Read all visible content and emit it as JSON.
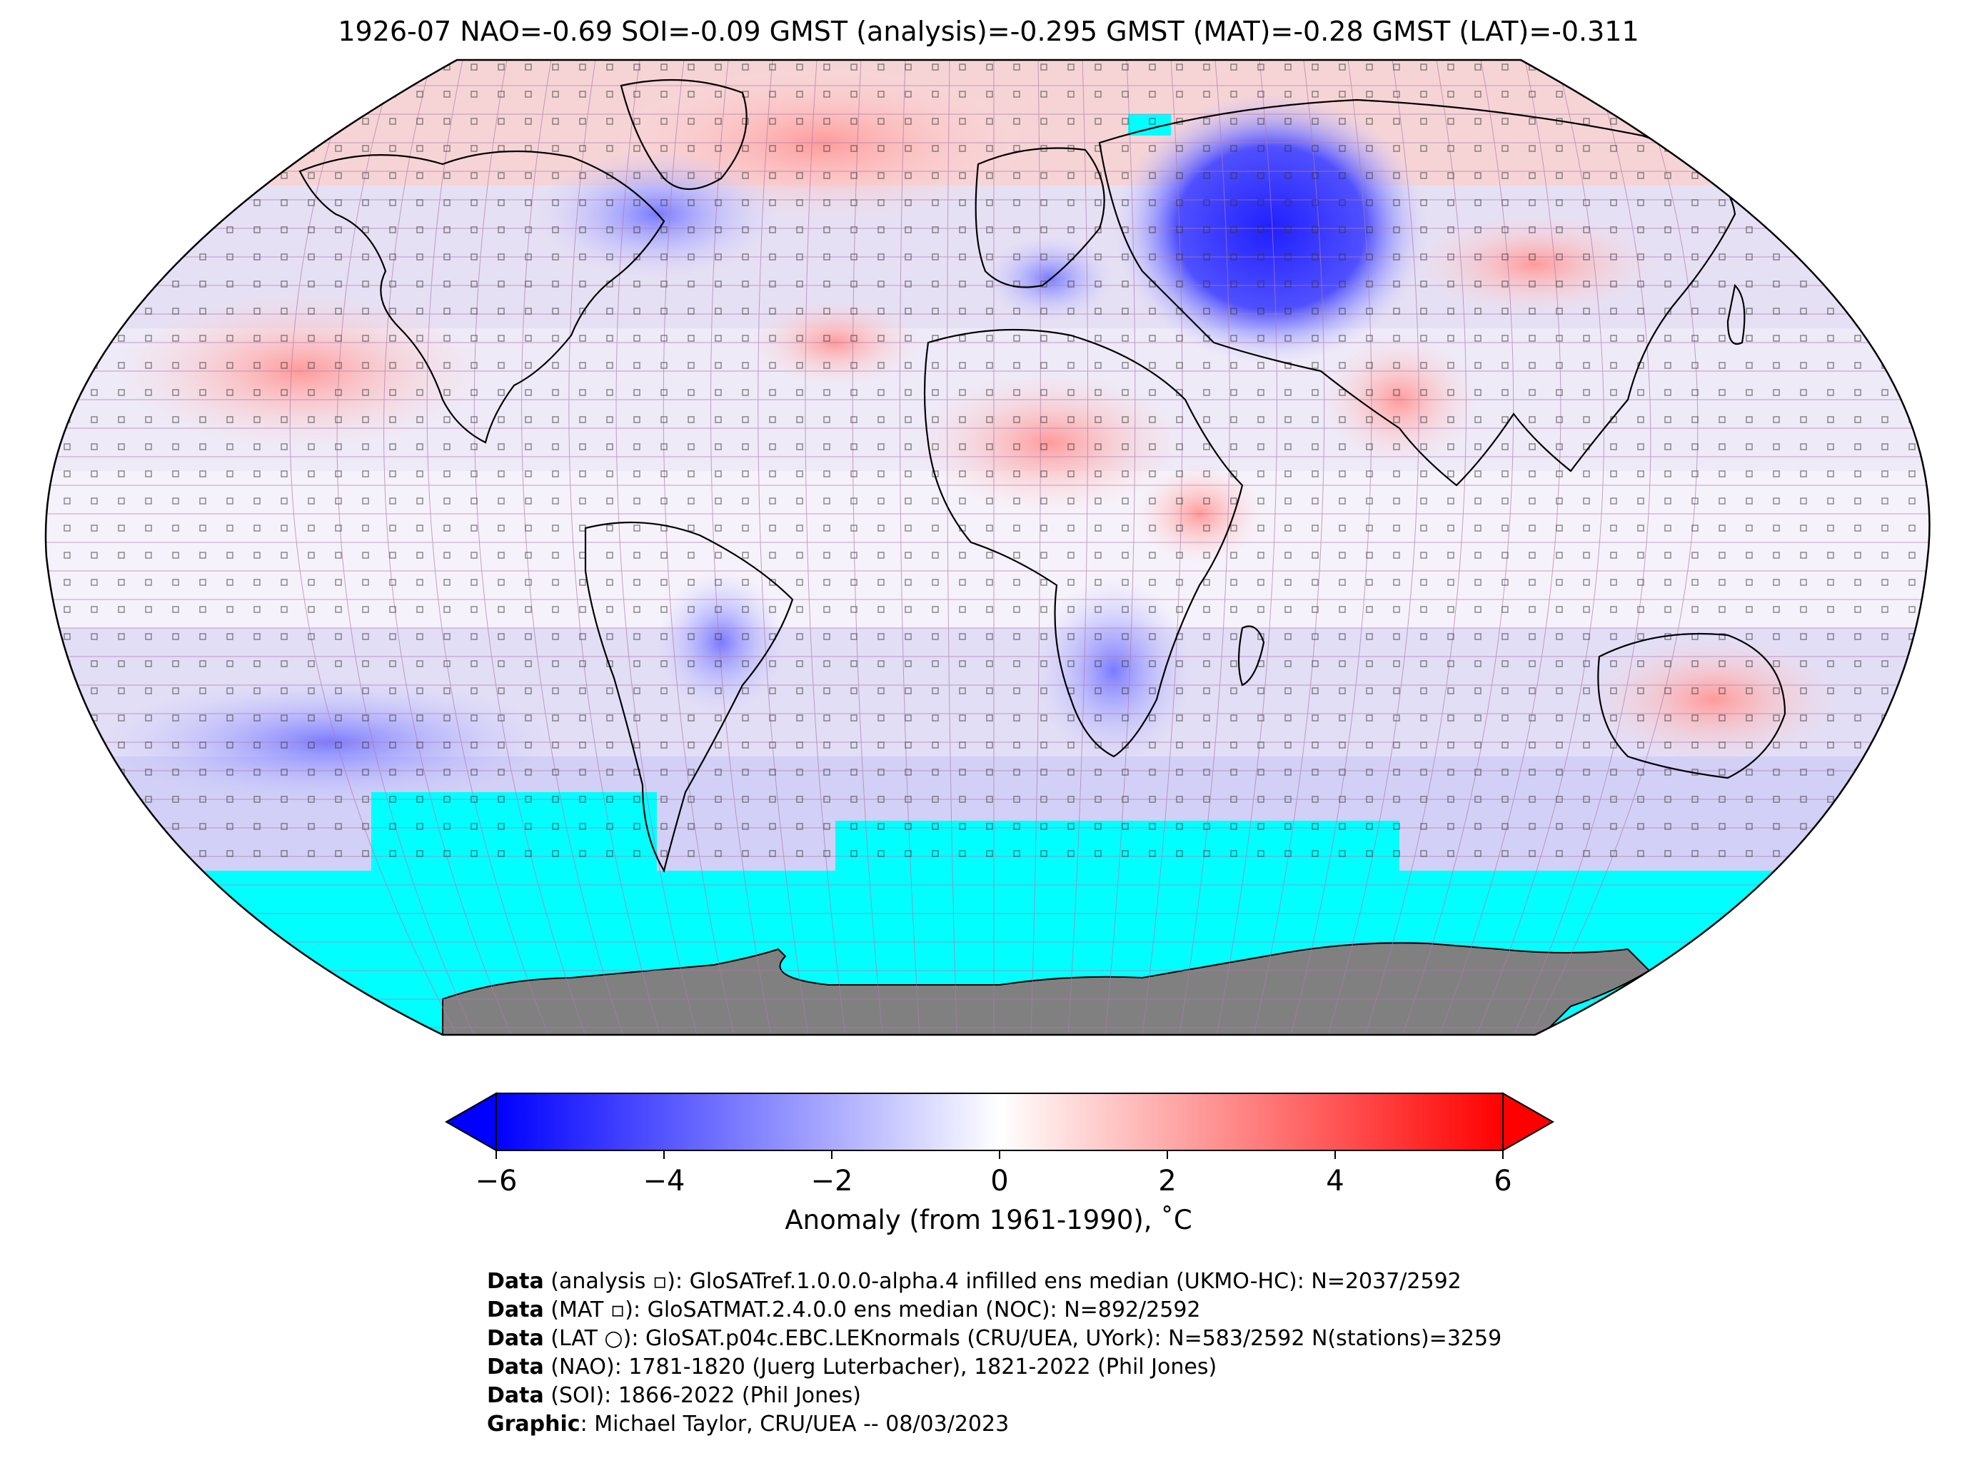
{
  "title": "1926-07 NAO=-0.69 SOI=-0.09 GMST (analysis)=-0.295 GMST (MAT)=-0.28 GMST (LAT)=-0.311",
  "map": {
    "projection": "Robinson",
    "missing_color": "#00ffff",
    "land_antarctica_color": "#808080",
    "grid_line_color": "#b07ab0",
    "anomaly_regions": [
      {
        "region": "north-pacific",
        "anomaly": 1.2
      },
      {
        "region": "northeast-canada-greenland",
        "anomaly": 1.0
      },
      {
        "region": "western-russia",
        "anomaly": -4.2
      },
      {
        "region": "central-asia",
        "anomaly": 1.6
      },
      {
        "region": "north-africa-sahel",
        "anomaly": 1.4
      },
      {
        "region": "southern-africa",
        "anomaly": -2.2
      },
      {
        "region": "southern-ocean-pacific",
        "anomaly": -1.8
      },
      {
        "region": "australia",
        "anomaly": 1.2
      },
      {
        "region": "north-atlantic",
        "anomaly": 1.1
      }
    ]
  },
  "colorbar": {
    "cmap": "bwr",
    "vmin": -6,
    "vmax": 6,
    "ticks": [
      "−6",
      "−4",
      "−2",
      "0",
      "2",
      "4",
      "6"
    ],
    "label": "Anomaly (from 1961-1990), ˚C",
    "extend": "both"
  },
  "credits": [
    {
      "label": "Data",
      "text": " (analysis ▫): GloSATref.1.0.0.0-alpha.4 infilled ens median (UKMO-HC): N=2037/2592"
    },
    {
      "label": "Data",
      "text": " (MAT ▫): GloSATMAT.2.4.0.0 ens median (NOC): N=892/2592"
    },
    {
      "label": "Data",
      "text": " (LAT ○): GloSAT.p04c.EBC.LEKnormals (CRU/UEA, UYork): N=583/2592 N(stations)=3259"
    },
    {
      "label": "Data",
      "text": " (NAO): 1781-1820 (Juerg Luterbacher), 1821-2022 (Phil Jones)"
    },
    {
      "label": "Data",
      "text": " (SOI): 1866-2022 (Phil Jones)"
    },
    {
      "label": "Graphic",
      "text": ": Michael Taylor, CRU/UEA -- 08/03/2023"
    }
  ]
}
